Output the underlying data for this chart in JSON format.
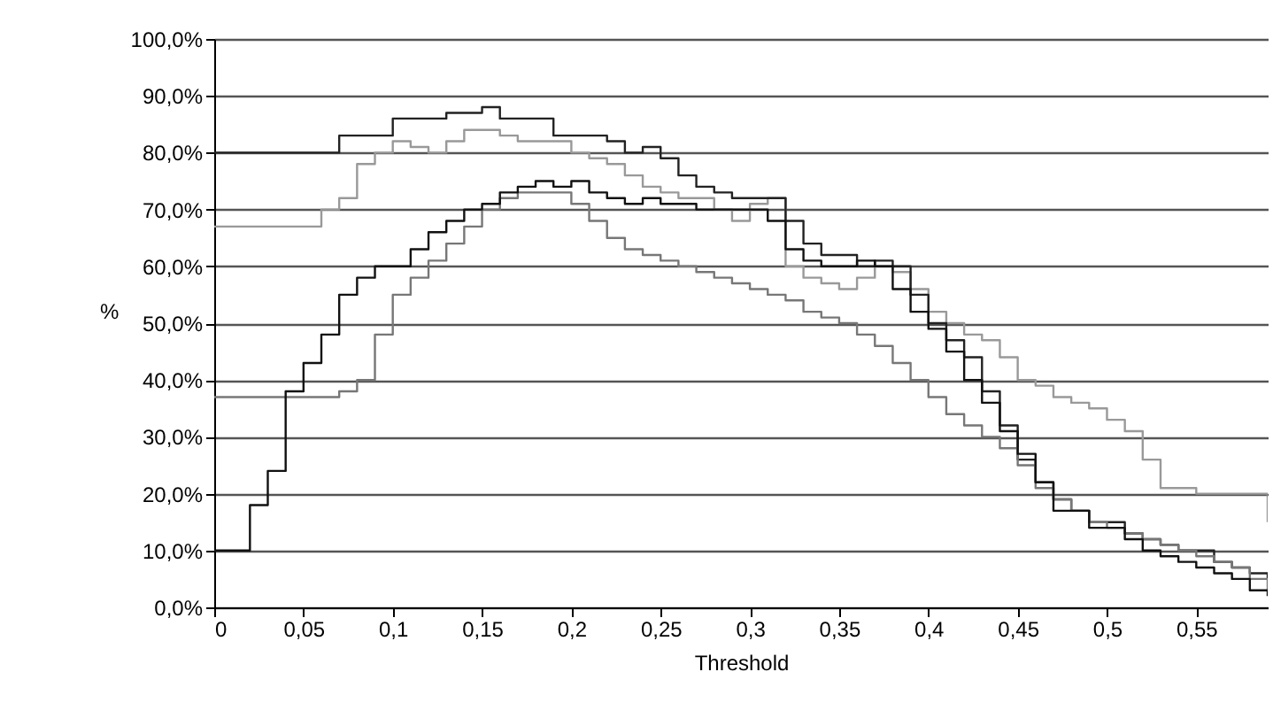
{
  "chart_data": {
    "type": "step",
    "xlabel": "Threshold",
    "ylabel": "%",
    "grid": "y",
    "marker": "none",
    "line_style": "solid",
    "x": [
      0,
      0.01,
      0.02,
      0.03,
      0.04,
      0.05,
      0.06,
      0.07,
      0.08,
      0.09,
      0.1,
      0.11,
      0.12,
      0.13,
      0.14,
      0.15,
      0.16,
      0.17,
      0.18,
      0.19,
      0.2,
      0.21,
      0.22,
      0.23,
      0.24,
      0.25,
      0.26,
      0.27,
      0.28,
      0.29,
      0.3,
      0.31,
      0.32,
      0.33,
      0.34,
      0.35,
      0.36,
      0.37,
      0.38,
      0.39,
      0.4,
      0.41,
      0.42,
      0.43,
      0.44,
      0.45,
      0.46,
      0.47,
      0.48,
      0.49,
      0.5,
      0.51,
      0.52,
      0.53,
      0.54,
      0.55,
      0.56,
      0.57,
      0.58,
      0.59
    ],
    "xlim": [
      0,
      0.59
    ],
    "xticks": [
      0,
      {
        "value": 0.05,
        "label": "0,05"
      },
      {
        "value": 0.1,
        "label": "0,1"
      },
      {
        "value": 0.15,
        "label": "0,15"
      },
      {
        "value": 0.2,
        "label": "0,2"
      },
      {
        "value": 0.25,
        "label": "0,25"
      },
      {
        "value": 0.3,
        "label": "0,3"
      },
      {
        "value": 0.35,
        "label": "0,35"
      },
      {
        "value": 0.4,
        "label": "0,4"
      },
      {
        "value": 0.45,
        "label": "0,45"
      },
      {
        "value": 0.5,
        "label": "0,5"
      },
      {
        "value": 0.55,
        "label": "0,55"
      }
    ],
    "ylim": [
      0,
      100
    ],
    "yticks": [
      {
        "value": 0,
        "label": "0,0%"
      },
      {
        "value": 10,
        "label": "10,0%"
      },
      {
        "value": 20,
        "label": "20,0%"
      },
      {
        "value": 30,
        "label": "30,0%"
      },
      {
        "value": 40,
        "label": "40,0%"
      },
      {
        "value": 50,
        "label": "50,0%"
      },
      {
        "value": 60,
        "label": "60,0%"
      },
      {
        "value": 70,
        "label": "70,0%"
      },
      {
        "value": 80,
        "label": "80,0%"
      },
      {
        "value": 90,
        "label": "90,0%"
      },
      {
        "value": 100,
        "label": "100,0%"
      }
    ],
    "series": [
      {
        "color": "#999999",
        "values": [
          67,
          67,
          67,
          67,
          67,
          67,
          70,
          72,
          78,
          80,
          82,
          81,
          80,
          82,
          84,
          84,
          83,
          82,
          82,
          82,
          80,
          79,
          78,
          76,
          74,
          73,
          72,
          72,
          70,
          68,
          71,
          72,
          60,
          58,
          57,
          56,
          58,
          60,
          59,
          56,
          52,
          50,
          48,
          47,
          44,
          40,
          39,
          37,
          36,
          35,
          33,
          31,
          26,
          21,
          21,
          20,
          20,
          20,
          20,
          15
        ]
      },
      {
        "color": "#222222",
        "values": [
          80,
          80,
          80,
          80,
          80,
          80,
          80,
          83,
          83,
          83,
          86,
          86,
          86,
          87,
          87,
          88,
          86,
          86,
          86,
          83,
          83,
          83,
          82,
          80,
          81,
          79,
          76,
          74,
          73,
          72,
          72,
          72,
          68,
          64,
          62,
          62,
          60,
          61,
          60,
          55,
          50,
          47,
          44,
          38,
          32,
          26,
          22,
          19,
          17,
          15,
          15,
          13,
          12,
          11,
          10,
          10,
          8,
          7,
          6,
          5
        ]
      },
      {
        "color": "#777777",
        "values": [
          37,
          37,
          37,
          37,
          37,
          37,
          37,
          38,
          40,
          48,
          55,
          58,
          61,
          64,
          67,
          70,
          72,
          73,
          73,
          73,
          71,
          68,
          65,
          63,
          62,
          61,
          60,
          59,
          58,
          57,
          56,
          55,
          54,
          52,
          51,
          50,
          48,
          46,
          43,
          40,
          37,
          34,
          32,
          30,
          28,
          25,
          21,
          19,
          17,
          15,
          14,
          13,
          12,
          11,
          10,
          9,
          8,
          7,
          5,
          3
        ]
      },
      {
        "color": "#111111",
        "values": [
          10,
          10,
          18,
          24,
          38,
          43,
          48,
          55,
          58,
          60,
          60,
          63,
          66,
          68,
          70,
          71,
          73,
          74,
          75,
          74,
          75,
          73,
          72,
          71,
          72,
          71,
          71,
          70,
          70,
          70,
          70,
          68,
          63,
          61,
          60,
          60,
          61,
          60,
          56,
          52,
          49,
          45,
          40,
          36,
          31,
          27,
          22,
          17,
          17,
          14,
          14,
          12,
          10,
          9,
          8,
          7,
          6,
          5,
          3,
          2
        ]
      }
    ]
  }
}
